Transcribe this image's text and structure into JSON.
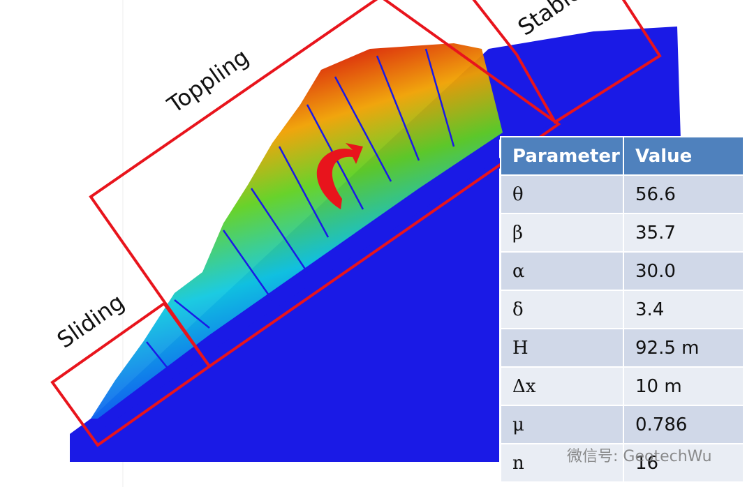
{
  "labels": {
    "sliding": "Sliding",
    "toppling": "Toppling",
    "stable": "Stable"
  },
  "table": {
    "header": [
      "Parameter",
      "Value"
    ],
    "rows": [
      [
        "θ",
        "56.6"
      ],
      [
        "β",
        "35.7"
      ],
      [
        "α",
        "30.0"
      ],
      [
        "δ",
        "3.4"
      ],
      [
        "H",
        "92.5 m"
      ],
      [
        "Δx",
        "10 m"
      ],
      [
        "μ",
        "0.786"
      ],
      [
        "n",
        "16"
      ]
    ]
  },
  "watermark": "微信号: GeotechWu"
}
